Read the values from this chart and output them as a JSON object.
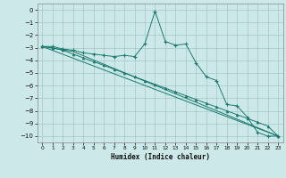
{
  "xlabel": "Humidex (Indice chaleur)",
  "ylabel": "",
  "xlim": [
    -0.5,
    23.5
  ],
  "ylim": [
    -10.5,
    0.5
  ],
  "yticks": [
    0,
    -1,
    -2,
    -3,
    -4,
    -5,
    -6,
    -7,
    -8,
    -9,
    -10
  ],
  "xticks": [
    0,
    1,
    2,
    3,
    4,
    5,
    6,
    7,
    8,
    9,
    10,
    11,
    12,
    13,
    14,
    15,
    16,
    17,
    18,
    19,
    20,
    21,
    22,
    23
  ],
  "bg_color": "#cce8e8",
  "line_color": "#1a7a6e",
  "series0_x": [
    0,
    1,
    2,
    3,
    4,
    5,
    6,
    7,
    8,
    9,
    10,
    11,
    12,
    13,
    14,
    15,
    16,
    17,
    18,
    19,
    20,
    21,
    22,
    23
  ],
  "series0_y": [
    -2.9,
    -2.9,
    -3.1,
    -3.2,
    -3.4,
    -3.5,
    -3.6,
    -3.7,
    -3.6,
    -3.7,
    -2.7,
    -0.1,
    -2.5,
    -2.8,
    -2.7,
    -4.2,
    -5.3,
    -5.6,
    -7.5,
    -7.6,
    -8.5,
    -9.7,
    -10.0,
    -10.0
  ],
  "series1_x": [
    0,
    23
  ],
  "series1_y": [
    -2.9,
    -10.0
  ],
  "series2_x": [
    0,
    3,
    23
  ],
  "series2_y": [
    -2.9,
    -3.3,
    -10.0
  ],
  "series3_x": [
    0,
    1,
    2,
    3,
    4,
    5,
    6,
    7,
    8,
    9,
    10,
    11,
    12,
    13,
    14,
    15,
    16,
    17,
    18,
    19,
    20,
    21,
    22,
    23
  ],
  "series3_y": [
    -2.9,
    -3.0,
    -3.2,
    -3.5,
    -3.8,
    -4.1,
    -4.4,
    -4.7,
    -5.0,
    -5.3,
    -5.6,
    -5.9,
    -6.2,
    -6.5,
    -6.8,
    -7.1,
    -7.4,
    -7.7,
    -8.0,
    -8.3,
    -8.6,
    -8.9,
    -9.2,
    -10.0
  ]
}
